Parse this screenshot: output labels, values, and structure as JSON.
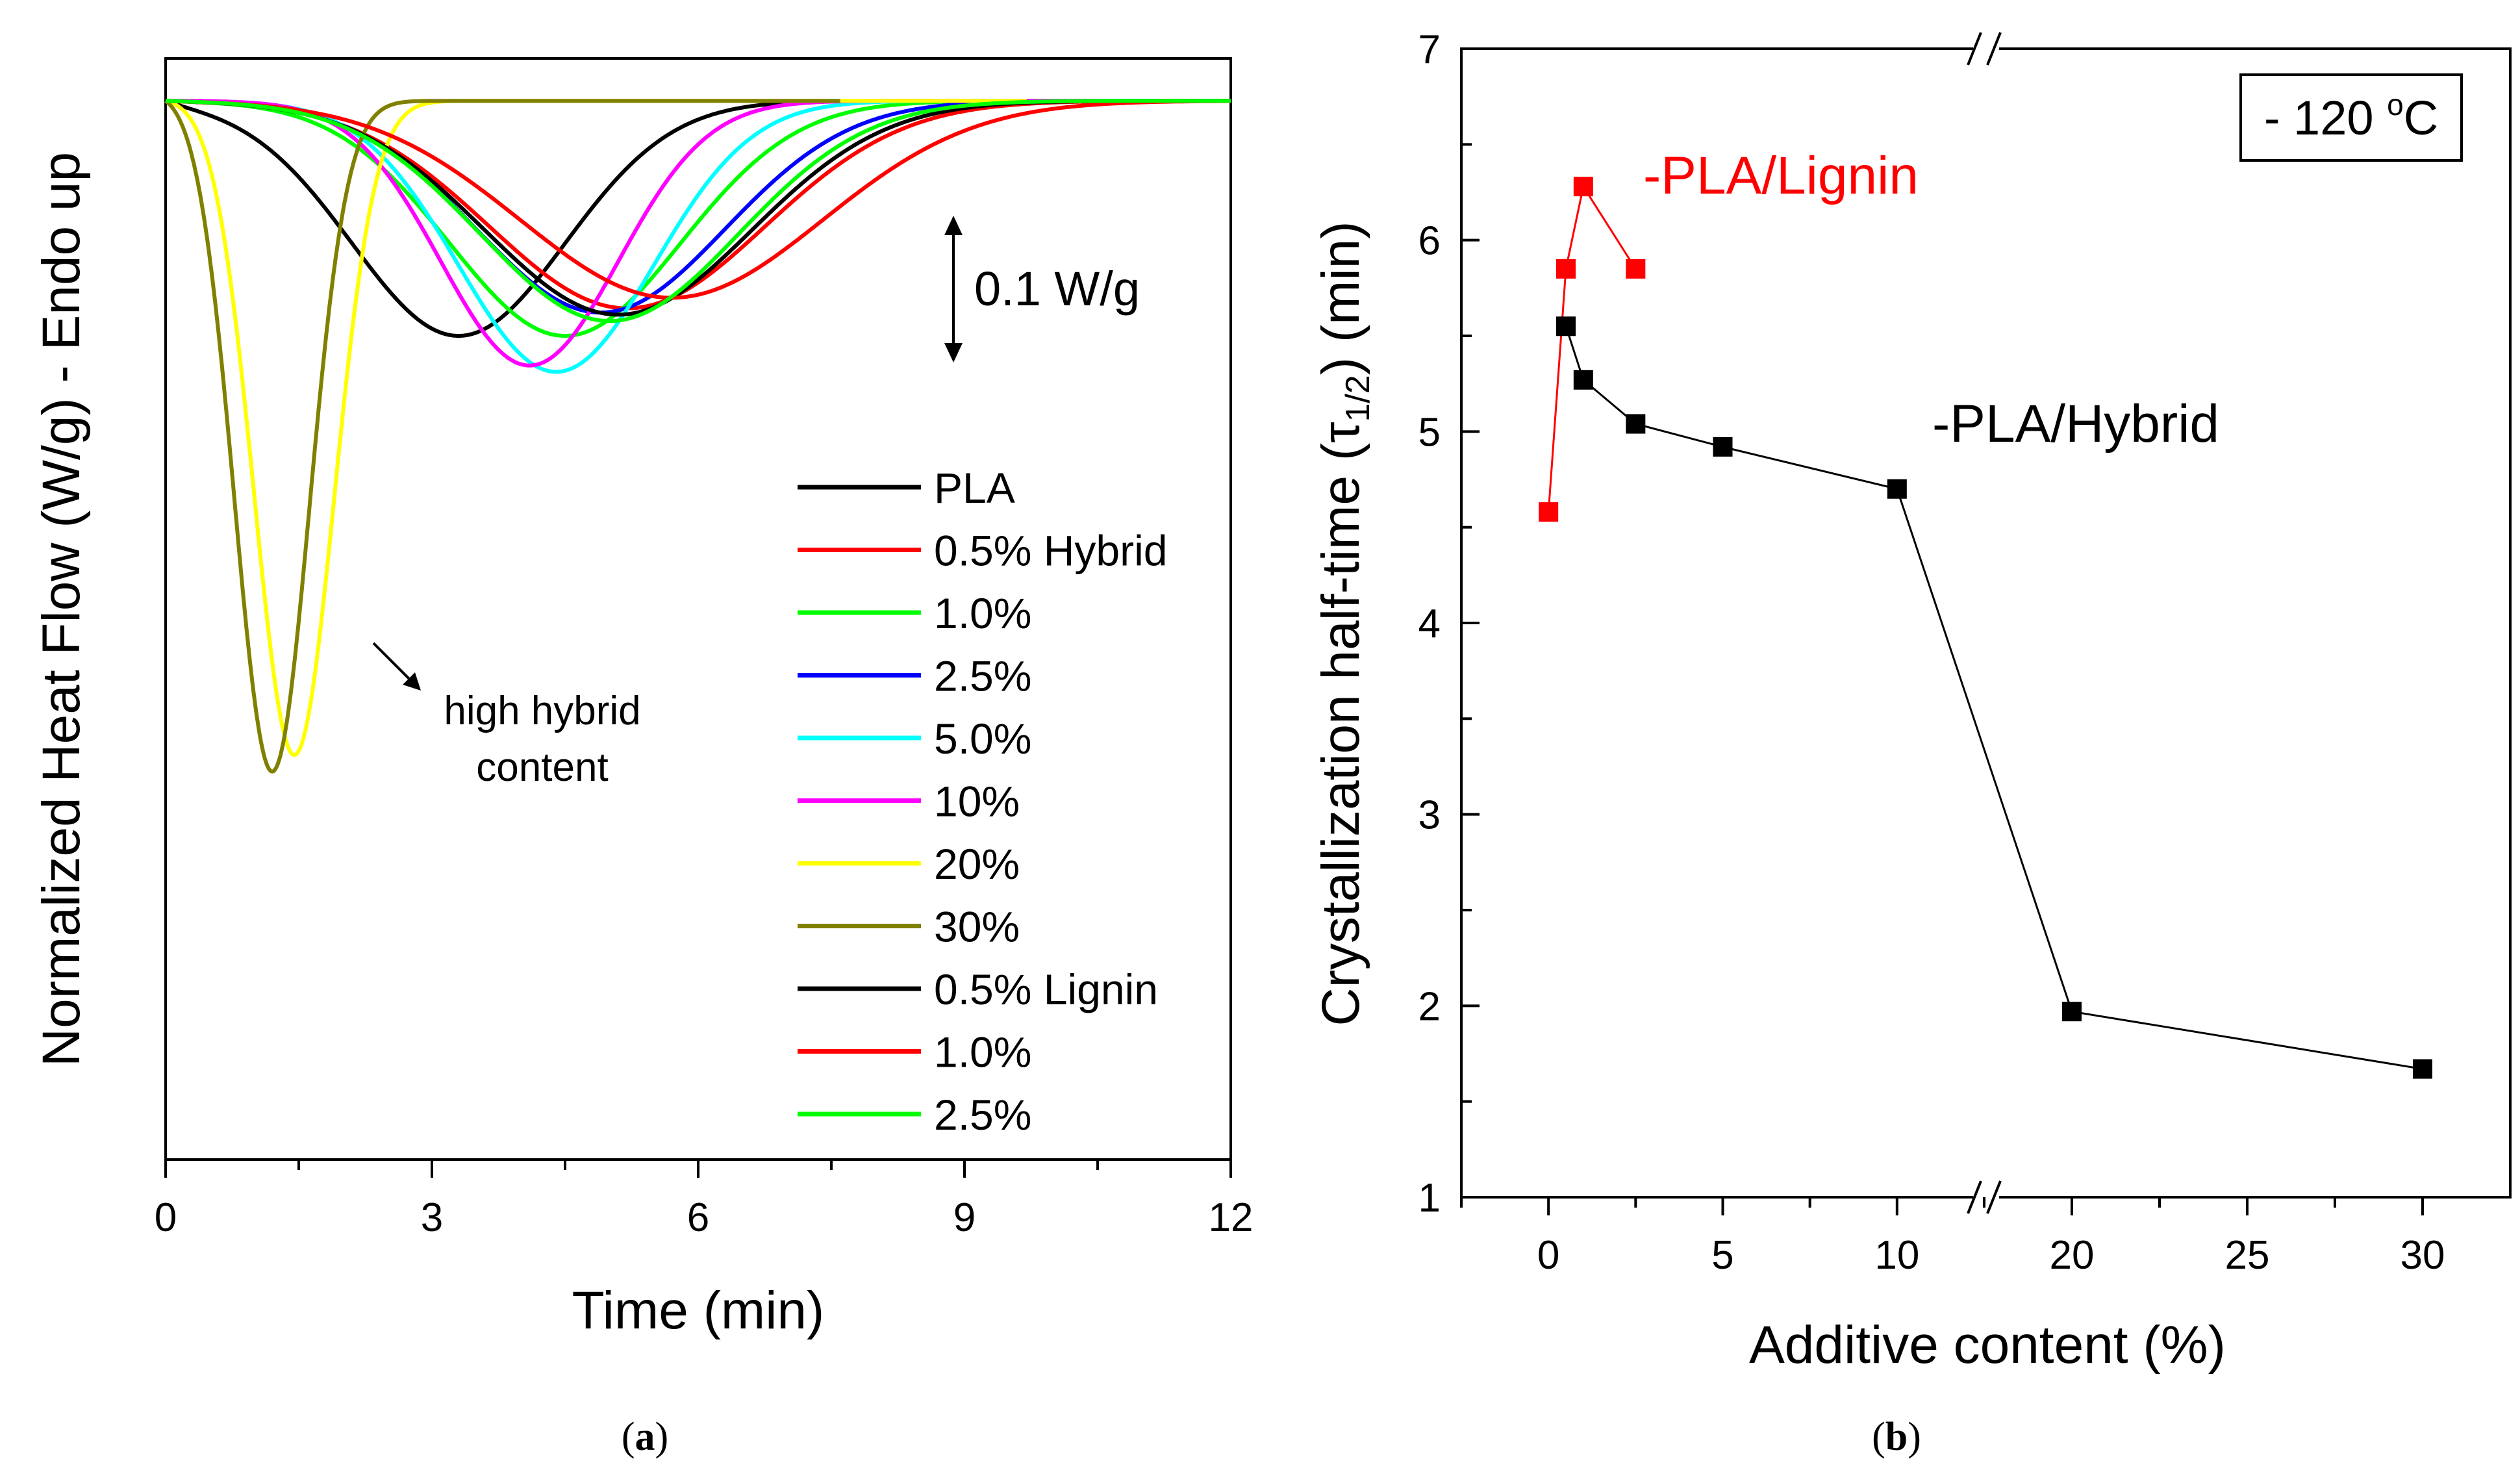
{
  "chart_data": [
    {
      "panel": "a",
      "panel_label": "(a)",
      "panel_letter": "a",
      "type": "line",
      "xlabel": "Time (min)",
      "ylabel": "Normalized Heat Flow (W/g) - Endo up",
      "xlim": [
        0,
        12
      ],
      "xticks": [
        "0",
        "3",
        "6",
        "9",
        "12"
      ],
      "ylim": [
        -0.5,
        0.02
      ],
      "baseline": 0,
      "scale_bar_label": "0.1 W/g",
      "scale_bar_value": 0.1,
      "annotation": {
        "line1": "high hybrid",
        "line2": "content"
      },
      "series": [
        {
          "name": "PLA",
          "color": "#000000",
          "peak_time": 3.3,
          "peak_depth": 0.111,
          "sigma": 1.2,
          "end": 12
        },
        {
          "name": "0.5% Hybrid",
          "color": "#ff0000",
          "peak_time": 5.2,
          "peak_depth": 0.098,
          "sigma": 1.55,
          "end": 12
        },
        {
          "name": "1.0%",
          "color": "#00ff00",
          "peak_time": 4.5,
          "peak_depth": 0.111,
          "sigma": 1.3,
          "end": 12
        },
        {
          "name": "2.5%",
          "color": "#0000ff",
          "peak_time": 4.9,
          "peak_depth": 0.1,
          "sigma": 1.4,
          "end": 12
        },
        {
          "name": "5.0%",
          "color": "#00ffff",
          "peak_time": 4.4,
          "peak_depth": 0.128,
          "sigma": 1.1,
          "end": 12
        },
        {
          "name": "10%",
          "color": "#ff00ff",
          "peak_time": 4.1,
          "peak_depth": 0.125,
          "sigma": 1.0,
          "end": 12
        },
        {
          "name": "20%",
          "color": "#ffff00",
          "peak_time": 1.45,
          "peak_depth": 0.309,
          "sigma": 0.45,
          "end": 9.7
        },
        {
          "name": "30%",
          "color": "#808000",
          "peak_time": 1.2,
          "peak_depth": 0.317,
          "sigma": 0.42,
          "end": 7.6
        },
        {
          "name": "0.5% Lignin",
          "color": "#000000",
          "peak_time": 5.1,
          "peak_depth": 0.101,
          "sigma": 1.5,
          "end": 12
        },
        {
          "name": "1.0%",
          "color": "#ff0000",
          "peak_time": 5.7,
          "peak_depth": 0.093,
          "sigma": 1.7,
          "end": 12
        },
        {
          "name": "2.5%",
          "color": "#00ff00",
          "peak_time": 5.0,
          "peak_depth": 0.104,
          "sigma": 1.45,
          "end": 12
        }
      ]
    },
    {
      "panel": "b",
      "panel_label": "(b)",
      "panel_letter": "b",
      "type": "scatter",
      "xlabel": "Additive content (%)",
      "ylabel_main": "Crystallization half-time (τ",
      "ylabel_sub": "1/2",
      "ylabel_end": ") (min)",
      "ylim": [
        1,
        7
      ],
      "yticks": [
        "1",
        "2",
        "3",
        "4",
        "5",
        "6",
        "7"
      ],
      "xticks": [
        "0",
        "5",
        "10",
        "20",
        "25",
        "30"
      ],
      "temperature_label": {
        "prefix": "- 120 ",
        "sup": "o",
        "unit": "C"
      },
      "series": [
        {
          "name": "-PLA/Lignin",
          "color": "#ff0000",
          "x": [
            0,
            0.5,
            1.0,
            2.5
          ],
          "y": [
            4.58,
            5.85,
            6.28,
            5.85
          ]
        },
        {
          "name": "-PLA/Hybrid",
          "color": "#000000",
          "x": [
            0.5,
            1.0,
            2.5,
            5.0,
            10,
            20,
            30
          ],
          "y": [
            5.55,
            5.27,
            5.04,
            4.92,
            4.7,
            1.97,
            1.67
          ]
        }
      ]
    }
  ]
}
